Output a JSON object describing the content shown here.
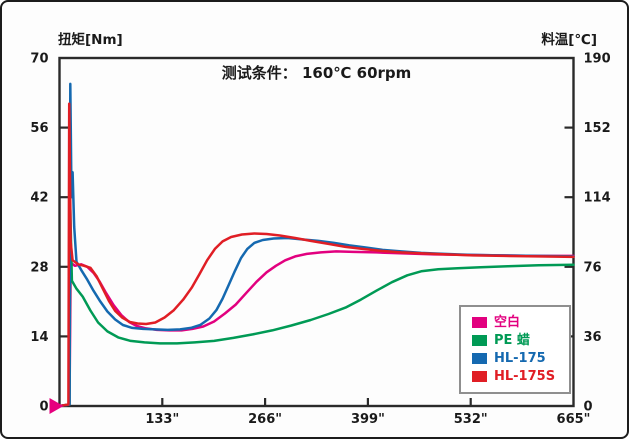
{
  "chart": {
    "title": "测试条件： 160℃ 60rpm",
    "left_axis_title": "扭矩[Nm]",
    "right_axis_title": "料温[℃]",
    "axis_color": "#2a2a2a",
    "text_color": "#1a1a1a",
    "legend_border_color": "#8f8f8f",
    "origin_marker": {
      "name": "start-marker",
      "color": "#e6007e"
    }
  },
  "chart_data": {
    "type": "line",
    "title": "测试条件： 160℃ 60rpm",
    "ylabel_left": "扭矩[Nm]",
    "ylabel_right": "料温[℃]",
    "xlim": [
      0,
      665
    ],
    "ylim_left": [
      0,
      70
    ],
    "left_ticks": [
      "70",
      "56",
      "42",
      "28",
      "14",
      "0"
    ],
    "right_ticks": [
      "190",
      "152",
      "114",
      "76",
      "36",
      "0"
    ],
    "x_ticks": [
      {
        "label": "133\"",
        "t": 133
      },
      {
        "label": "266\"",
        "t": 266
      },
      {
        "label": "399\"",
        "t": 399
      },
      {
        "label": "532\"",
        "t": 532
      },
      {
        "label": "665\"",
        "t": 665
      }
    ],
    "grid": false,
    "legend_position": "inside-lower-right",
    "series": [
      {
        "name": "空白",
        "color": "#e2007f",
        "points": [
          [
            0,
            0
          ],
          [
            13,
            0.3
          ],
          [
            14.5,
            28.8
          ],
          [
            20,
            28.2
          ],
          [
            28,
            28.5
          ],
          [
            36,
            28
          ],
          [
            44,
            26.8
          ],
          [
            52,
            25
          ],
          [
            60,
            22.8
          ],
          [
            70,
            20.3
          ],
          [
            80,
            18.3
          ],
          [
            90,
            16.9
          ],
          [
            100,
            16.1
          ],
          [
            112,
            15.6
          ],
          [
            126,
            15.3
          ],
          [
            142,
            15.2
          ],
          [
            158,
            15.2
          ],
          [
            172,
            15.5
          ],
          [
            186,
            16
          ],
          [
            200,
            17
          ],
          [
            214,
            18.6
          ],
          [
            228,
            20.4
          ],
          [
            242,
            22.8
          ],
          [
            255,
            25
          ],
          [
            268,
            26.9
          ],
          [
            280,
            28.2
          ],
          [
            292,
            29.3
          ],
          [
            305,
            30.1
          ],
          [
            320,
            30.6
          ],
          [
            338,
            30.9
          ],
          [
            358,
            31.1
          ],
          [
            380,
            31
          ],
          [
            410,
            30.9
          ],
          [
            445,
            30.7
          ],
          [
            485,
            30.5
          ],
          [
            525,
            30.4
          ],
          [
            570,
            30.3
          ],
          [
            615,
            30.2
          ],
          [
            665,
            30.2
          ]
        ]
      },
      {
        "name": "PE 蜡",
        "color": "#009a55",
        "points": [
          [
            0,
            0
          ],
          [
            13,
            0.3
          ],
          [
            14,
            39.5
          ],
          [
            16,
            25.2
          ],
          [
            22,
            23.6
          ],
          [
            30,
            22
          ],
          [
            40,
            19.2
          ],
          [
            50,
            16.8
          ],
          [
            62,
            15
          ],
          [
            76,
            13.8
          ],
          [
            92,
            13.1
          ],
          [
            110,
            12.8
          ],
          [
            130,
            12.6
          ],
          [
            152,
            12.6
          ],
          [
            175,
            12.8
          ],
          [
            200,
            13.1
          ],
          [
            225,
            13.7
          ],
          [
            250,
            14.4
          ],
          [
            275,
            15.2
          ],
          [
            300,
            16.2
          ],
          [
            325,
            17.3
          ],
          [
            348,
            18.5
          ],
          [
            370,
            19.8
          ],
          [
            390,
            21.4
          ],
          [
            410,
            23.2
          ],
          [
            430,
            24.9
          ],
          [
            450,
            26.3
          ],
          [
            468,
            27.1
          ],
          [
            490,
            27.5
          ],
          [
            515,
            27.7
          ],
          [
            545,
            27.9
          ],
          [
            580,
            28.1
          ],
          [
            620,
            28.3
          ],
          [
            665,
            28.4
          ]
        ]
      },
      {
        "name": "HL-175",
        "color": "#1569b0",
        "points": [
          [
            0,
            0
          ],
          [
            13,
            0.3
          ],
          [
            14,
            64.8
          ],
          [
            15.5,
            42
          ],
          [
            17,
            47
          ],
          [
            19,
            36
          ],
          [
            22,
            29
          ],
          [
            28,
            27.4
          ],
          [
            36,
            25.4
          ],
          [
            44,
            23.2
          ],
          [
            52,
            21.2
          ],
          [
            62,
            19
          ],
          [
            72,
            17.4
          ],
          [
            82,
            16.3
          ],
          [
            94,
            15.7
          ],
          [
            108,
            15.5
          ],
          [
            124,
            15.4
          ],
          [
            140,
            15.3
          ],
          [
            156,
            15.4
          ],
          [
            170,
            15.7
          ],
          [
            182,
            16.3
          ],
          [
            194,
            17.6
          ],
          [
            203,
            19.3
          ],
          [
            211,
            21.6
          ],
          [
            219,
            24.4
          ],
          [
            227,
            27.2
          ],
          [
            235,
            29.8
          ],
          [
            243,
            31.6
          ],
          [
            252,
            32.8
          ],
          [
            263,
            33.4
          ],
          [
            277,
            33.7
          ],
          [
            295,
            33.8
          ],
          [
            315,
            33.5
          ],
          [
            335,
            33.2
          ],
          [
            355,
            32.8
          ],
          [
            375,
            32.3
          ],
          [
            395,
            31.9
          ],
          [
            418,
            31.4
          ],
          [
            442,
            31.1
          ],
          [
            468,
            30.8
          ],
          [
            498,
            30.6
          ],
          [
            532,
            30.4
          ],
          [
            570,
            30.3
          ],
          [
            615,
            30.2
          ],
          [
            665,
            30.1
          ]
        ]
      },
      {
        "name": "HL-175S",
        "color": "#e01e25",
        "points": [
          [
            0,
            0
          ],
          [
            11.5,
            0.3
          ],
          [
            12.5,
            60.8
          ],
          [
            14.5,
            33
          ],
          [
            17,
            29.3
          ],
          [
            24,
            28.5
          ],
          [
            32,
            28.2
          ],
          [
            40,
            27.8
          ],
          [
            48,
            26.1
          ],
          [
            56,
            23.6
          ],
          [
            64,
            21.1
          ],
          [
            72,
            19.1
          ],
          [
            81,
            17.8
          ],
          [
            91,
            16.9
          ],
          [
            101,
            16.6
          ],
          [
            112,
            16.5
          ],
          [
            124,
            16.8
          ],
          [
            136,
            17.8
          ],
          [
            148,
            19.3
          ],
          [
            160,
            21.4
          ],
          [
            171,
            23.8
          ],
          [
            181,
            26.5
          ],
          [
            191,
            29.3
          ],
          [
            201,
            31.6
          ],
          [
            211,
            33.1
          ],
          [
            222,
            34
          ],
          [
            236,
            34.5
          ],
          [
            252,
            34.7
          ],
          [
            268,
            34.6
          ],
          [
            285,
            34.3
          ],
          [
            305,
            33.8
          ],
          [
            325,
            33.2
          ],
          [
            348,
            32.6
          ],
          [
            370,
            32
          ],
          [
            392,
            31.6
          ],
          [
            416,
            31.2
          ],
          [
            442,
            30.9
          ],
          [
            470,
            30.7
          ],
          [
            500,
            30.5
          ],
          [
            535,
            30.3
          ],
          [
            575,
            30.2
          ],
          [
            618,
            30.1
          ],
          [
            665,
            30
          ]
        ]
      }
    ]
  }
}
